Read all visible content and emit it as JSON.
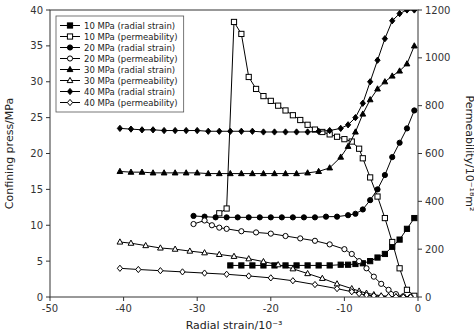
{
  "chart_data": {
    "type": "line",
    "xlabel": "Radial strain/10⁻³",
    "ylabel": "Confining press/MPa",
    "y2label": "Permeability/10⁻¹⁸m²",
    "xlim": [
      -50,
      0
    ],
    "ylim": [
      0,
      40
    ],
    "y2lim": [
      0,
      1200
    ],
    "xticks": [
      -50,
      -40,
      -30,
      -20,
      -10,
      0
    ],
    "yticks": [
      0,
      5,
      10,
      15,
      20,
      25,
      30,
      35,
      40
    ],
    "y2ticks": [
      0,
      200,
      400,
      600,
      800,
      1000,
      1200
    ],
    "grid": false,
    "legend": "upper left",
    "series": [
      {
        "name": "10 MPa (radial strain)",
        "axis": "y",
        "color": "black",
        "marker": "square",
        "x": [
          -25.5,
          -24.0,
          -22.5,
          -21.0,
          -19.5,
          -18.0,
          -16.5,
          -15.0,
          -13.5,
          -12.0,
          -10.5,
          -9.5,
          -8.5,
          -7.5,
          -6.5,
          -5.5,
          -4.5,
          -3.5,
          -2.5,
          -1.5,
          -0.5
        ],
        "values": [
          4.4,
          4.4,
          4.4,
          4.4,
          4.4,
          4.4,
          4.4,
          4.4,
          4.4,
          4.4,
          4.5,
          4.5,
          4.6,
          4.7,
          5.0,
          5.5,
          6.0,
          7.0,
          8.0,
          9.5,
          11.0
        ]
      },
      {
        "name": "10 MPa (permeability)",
        "axis": "y2",
        "color": "black",
        "marker": "square-open",
        "x": [
          -27.0,
          -26.0,
          -25.0,
          -24.0,
          -23.0,
          -22.0,
          -21.0,
          -20.0,
          -19.0,
          -18.0,
          -17.0,
          -16.0,
          -15.0,
          -14.0,
          -13.0,
          -12.0,
          -11.0,
          -10.0,
          -9.0,
          -8.0,
          -7.5,
          -6.5,
          -5.5,
          -4.5,
          -3.5,
          -2.5,
          -1.5,
          -0.5
        ],
        "values": [
          350,
          370,
          1150,
          1100,
          920,
          870,
          840,
          820,
          800,
          780,
          760,
          740,
          720,
          700,
          690,
          680,
          670,
          660,
          650,
          620,
          580,
          500,
          420,
          330,
          230,
          120,
          30,
          5
        ]
      },
      {
        "name": "20 MPa (radial strain)",
        "axis": "y",
        "color": "black",
        "marker": "circle",
        "x": [
          -30.5,
          -29.0,
          -27.5,
          -26.0,
          -24.5,
          -23.0,
          -21.5,
          -20.0,
          -18.5,
          -17.0,
          -15.5,
          -14.0,
          -12.5,
          -11.0,
          -9.5,
          -8.5,
          -7.5,
          -6.5,
          -5.5,
          -4.5,
          -3.5,
          -2.5,
          -1.5,
          -0.5
        ],
        "values": [
          11.3,
          11.2,
          11.1,
          11.1,
          11.1,
          11.1,
          11.1,
          11.1,
          11.1,
          11.1,
          11.1,
          11.1,
          11.2,
          11.2,
          11.4,
          11.6,
          12.2,
          13.5,
          15.0,
          17.0,
          19.5,
          21.5,
          23.5,
          26.0
        ]
      },
      {
        "name": "20 MPa (permeability)",
        "axis": "y2",
        "color": "black",
        "marker": "circle-open",
        "x": [
          -30.5,
          -29.0,
          -28.0,
          -27.0,
          -26.0,
          -24.0,
          -22.0,
          -20.0,
          -18.0,
          -16.0,
          -14.0,
          -12.0,
          -10.0,
          -9.0,
          -8.0,
          -7.0,
          -6.0,
          -5.0,
          -4.0,
          -3.0,
          -2.0,
          -1.0
        ],
        "values": [
          305,
          320,
          300,
          290,
          285,
          275,
          270,
          265,
          255,
          245,
          235,
          220,
          200,
          180,
          150,
          120,
          85,
          55,
          30,
          12,
          3,
          0
        ]
      },
      {
        "name": "30 MPa (radial strain)",
        "axis": "y",
        "color": "black",
        "marker": "triangle",
        "x": [
          -40.5,
          -39.0,
          -37.5,
          -36.0,
          -34.5,
          -33.0,
          -31.5,
          -30.0,
          -28.5,
          -27.0,
          -25.5,
          -24.0,
          -22.5,
          -21.0,
          -19.5,
          -18.0,
          -16.5,
          -15.0,
          -13.5,
          -12.0,
          -10.5,
          -9.5,
          -8.5,
          -7.5,
          -6.5,
          -5.5,
          -4.5,
          -3.5,
          -2.5,
          -1.5,
          -0.5
        ],
        "values": [
          17.5,
          17.4,
          17.4,
          17.3,
          17.3,
          17.3,
          17.3,
          17.3,
          17.2,
          17.2,
          17.2,
          17.2,
          17.2,
          17.2,
          17.2,
          17.2,
          17.2,
          17.3,
          17.5,
          18.0,
          19.5,
          21.0,
          23.0,
          25.5,
          27.5,
          29.0,
          30.0,
          30.8,
          31.5,
          32.5,
          35.0
        ]
      },
      {
        "name": "30 MPa (permeability)",
        "axis": "y2",
        "color": "black",
        "marker": "triangle-open",
        "x": [
          -40.5,
          -39.0,
          -37.0,
          -35.0,
          -33.0,
          -31.0,
          -29.0,
          -27.0,
          -25.0,
          -23.0,
          -21.0,
          -19.0,
          -17.0,
          -15.0,
          -13.0,
          -11.0,
          -9.0,
          -8.0,
          -7.0,
          -6.0,
          -5.0,
          -4.0,
          -3.0,
          -2.0,
          -1.0
        ],
        "values": [
          230,
          225,
          215,
          205,
          200,
          192,
          185,
          178,
          170,
          160,
          148,
          135,
          118,
          98,
          78,
          55,
          35,
          25,
          16,
          10,
          5,
          3,
          1,
          0,
          0
        ]
      },
      {
        "name": "40 MPa (radial strain)",
        "axis": "y",
        "color": "black",
        "marker": "diamond",
        "x": [
          -40.5,
          -39.0,
          -37.5,
          -36.0,
          -34.5,
          -33.0,
          -31.5,
          -30.0,
          -28.5,
          -27.0,
          -25.5,
          -24.0,
          -22.5,
          -21.0,
          -19.5,
          -18.0,
          -16.5,
          -15.0,
          -13.5,
          -12.0,
          -10.5,
          -9.5,
          -8.5,
          -7.5,
          -6.5,
          -5.5,
          -4.5,
          -3.5,
          -2.5,
          -1.5,
          -0.5
        ],
        "values": [
          23.5,
          23.4,
          23.3,
          23.3,
          23.2,
          23.2,
          23.2,
          23.2,
          23.1,
          23.1,
          23.1,
          23.1,
          23.1,
          23.0,
          23.0,
          23.0,
          23.0,
          23.0,
          23.1,
          23.2,
          23.5,
          24.0,
          25.0,
          27.0,
          30.0,
          33.0,
          36.0,
          38.5,
          39.5,
          40.0,
          40.0
        ]
      },
      {
        "name": "40 MPa (permeability)",
        "axis": "y2",
        "color": "black",
        "marker": "diamond-open",
        "x": [
          -40.5,
          -38.0,
          -35.0,
          -32.0,
          -29.0,
          -26.0,
          -23.0,
          -20.0,
          -17.0,
          -14.0,
          -11.0,
          -9.0,
          -8.0,
          -7.0,
          -6.0,
          -5.0,
          -4.0,
          -3.0,
          -2.0,
          -1.0
        ],
        "values": [
          120,
          115,
          110,
          105,
          100,
          95,
          88,
          80,
          68,
          52,
          35,
          22,
          14,
          8,
          5,
          3,
          2,
          1,
          0,
          0
        ]
      }
    ]
  }
}
